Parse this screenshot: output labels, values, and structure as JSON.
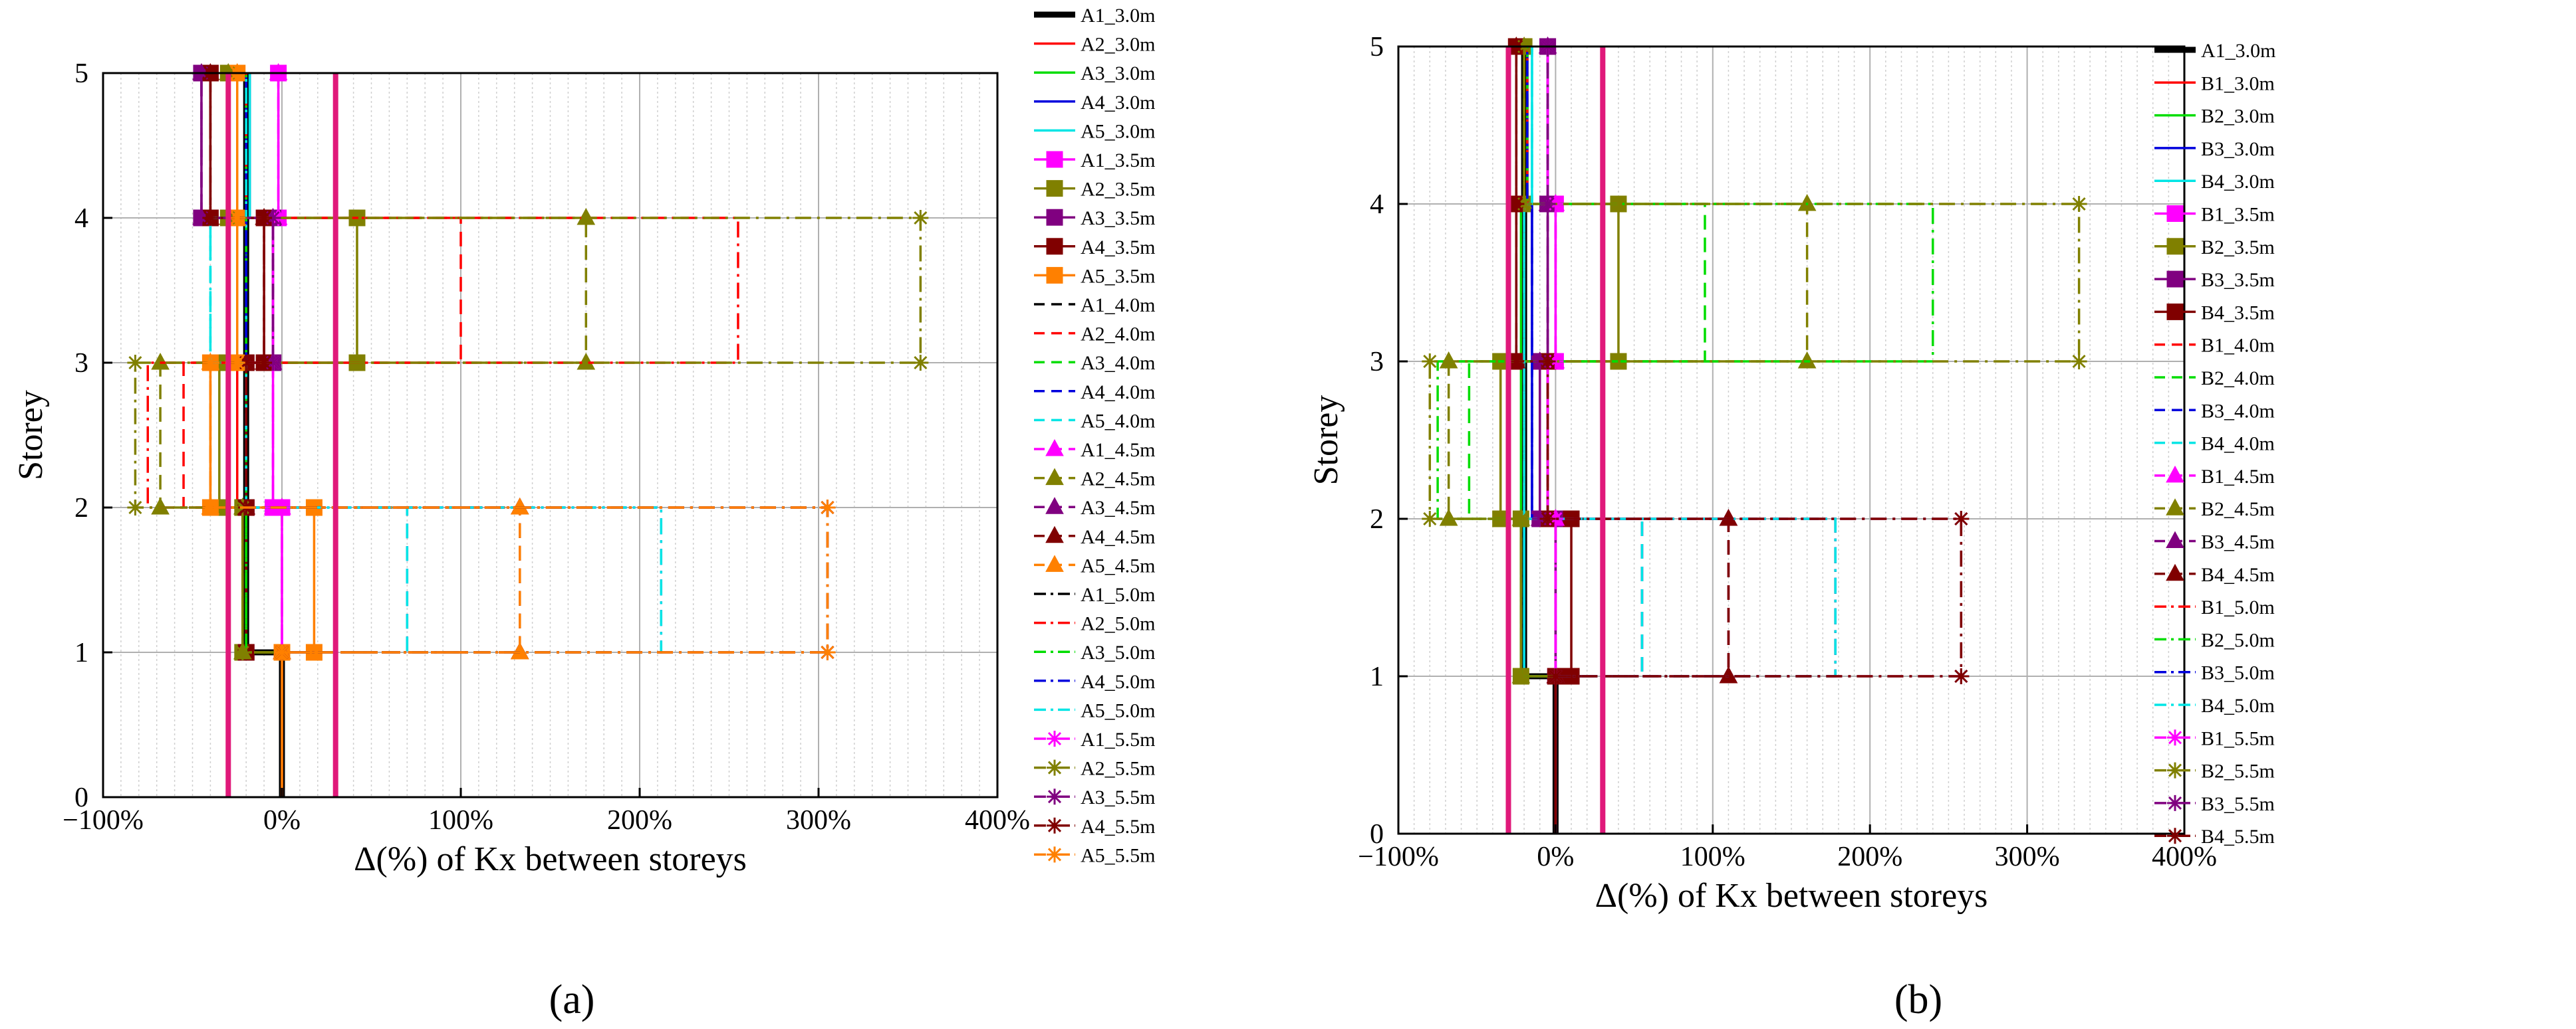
{
  "panels": [
    {
      "label": "(a)",
      "chart_data": {
        "type": "line",
        "xlabel": "Δ(%) of Kx between storeys",
        "ylabel": "Storey",
        "xlim": [
          -100,
          400
        ],
        "ylim": [
          0,
          5
        ],
        "x_ticks": [
          -100,
          0,
          100,
          200,
          300,
          400
        ],
        "x_tick_labels": [
          "−100%",
          "0%",
          "100%",
          "200%",
          "300%",
          "400%"
        ],
        "y_ticks": [
          0,
          1,
          2,
          3,
          4,
          5
        ],
        "y_tick_labels": [
          "0",
          "1",
          "2",
          "3",
          "4",
          "5"
        ],
        "grid": true,
        "legend_position": "right",
        "limit_lines_x": [
          -30,
          30
        ],
        "limit_line_color": "#e0197a",
        "series": [
          {
            "name": "A1_3.0m",
            "color": "#000000",
            "dash": "solid",
            "marker": "none",
            "bold": true,
            "x": [
              0,
              -20,
              -20,
              -20,
              -20
            ]
          },
          {
            "name": "A2_3.0m",
            "color": "#ff0000",
            "dash": "solid",
            "marker": "none",
            "x": [
              0,
              -20,
              -25,
              -20,
              -20
            ]
          },
          {
            "name": "A3_3.0m",
            "color": "#00dd00",
            "dash": "solid",
            "marker": "none",
            "x": [
              0,
              -20,
              -20,
              -20,
              -18
            ]
          },
          {
            "name": "A4_3.0m",
            "color": "#0000dd",
            "dash": "solid",
            "marker": "none",
            "x": [
              0,
              -20,
              -20,
              -20,
              -18
            ]
          },
          {
            "name": "A5_3.0m",
            "color": "#00e5e5",
            "dash": "solid",
            "marker": "none",
            "x": [
              0,
              -20,
              -20,
              -20,
              -18
            ]
          },
          {
            "name": "A1_3.5m",
            "color": "#ff00ff",
            "dash": "solid",
            "marker": "square",
            "x": [
              0,
              0,
              -5,
              -5,
              -2
            ]
          },
          {
            "name": "A2_3.5m",
            "color": "#808000",
            "dash": "solid",
            "marker": "square",
            "x": [
              0,
              -22,
              -35,
              42,
              -30
            ]
          },
          {
            "name": "A3_3.5m",
            "color": "#800080",
            "dash": "solid",
            "marker": "square",
            "x": [
              0,
              -20,
              -20,
              -5,
              -45
            ]
          },
          {
            "name": "A4_3.5m",
            "color": "#800000",
            "dash": "solid",
            "marker": "square",
            "x": [
              0,
              -20,
              -20,
              -10,
              -40
            ]
          },
          {
            "name": "A5_3.5m",
            "color": "#ff8000",
            "dash": "solid",
            "marker": "square",
            "x": [
              0,
              18,
              -40,
              -25,
              -25
            ]
          },
          {
            "name": "A1_4.0m",
            "color": "#000000",
            "dash": "dash",
            "marker": "none",
            "x": [
              0,
              -20,
              -20,
              -20,
              -20
            ]
          },
          {
            "name": "A2_4.0m",
            "color": "#ff0000",
            "dash": "dash",
            "marker": "none",
            "x": [
              0,
              -20,
              -55,
              100,
              -20
            ]
          },
          {
            "name": "A3_4.0m",
            "color": "#00dd00",
            "dash": "dash",
            "marker": "none",
            "x": [
              0,
              -20,
              -20,
              -20,
              -20
            ]
          },
          {
            "name": "A4_4.0m",
            "color": "#0000dd",
            "dash": "dash",
            "marker": "none",
            "x": [
              0,
              70,
              -20,
              -20,
              -20
            ]
          },
          {
            "name": "A5_4.0m",
            "color": "#00e5e5",
            "dash": "dash",
            "marker": "none",
            "x": [
              0,
              70,
              -20,
              -40,
              -20
            ]
          },
          {
            "name": "A1_4.5m",
            "color": "#ff00ff",
            "dash": "dash",
            "marker": "triangle",
            "x": [
              0,
              0,
              -5,
              -5,
              -2
            ]
          },
          {
            "name": "A2_4.5m",
            "color": "#808000",
            "dash": "dash",
            "marker": "triangle",
            "x": [
              0,
              -22,
              -68,
              170,
              -30
            ]
          },
          {
            "name": "A3_4.5m",
            "color": "#800080",
            "dash": "dash",
            "marker": "triangle",
            "x": [
              0,
              133,
              -20,
              -5,
              -45
            ]
          },
          {
            "name": "A4_4.5m",
            "color": "#800000",
            "dash": "dash",
            "marker": "triangle",
            "x": [
              0,
              133,
              -20,
              -10,
              -40
            ]
          },
          {
            "name": "A5_4.5m",
            "color": "#ff8000",
            "dash": "dash",
            "marker": "triangle",
            "x": [
              0,
              133,
              -40,
              -25,
              -25
            ]
          },
          {
            "name": "A1_5.0m",
            "color": "#000000",
            "dash": "dashdot",
            "marker": "none",
            "x": [
              0,
              -20,
              -20,
              -20,
              -20
            ]
          },
          {
            "name": "A2_5.0m",
            "color": "#ff0000",
            "dash": "dashdot",
            "marker": "none",
            "x": [
              0,
              -20,
              -75,
              255,
              -20
            ]
          },
          {
            "name": "A3_5.0m",
            "color": "#00dd00",
            "dash": "dashdot",
            "marker": "none",
            "x": [
              0,
              -20,
              -20,
              -20,
              -20
            ]
          },
          {
            "name": "A4_5.0m",
            "color": "#0000dd",
            "dash": "dashdot",
            "marker": "none",
            "x": [
              0,
              212,
              -20,
              -20,
              -20
            ]
          },
          {
            "name": "A5_5.0m",
            "color": "#00e5e5",
            "dash": "dashdot",
            "marker": "none",
            "x": [
              0,
              212,
              -20,
              -40,
              -20
            ]
          },
          {
            "name": "A1_5.5m",
            "color": "#ff00ff",
            "dash": "dashdot",
            "marker": "asterisk",
            "x": [
              0,
              0,
              -5,
              -5,
              -2
            ]
          },
          {
            "name": "A2_5.5m",
            "color": "#808000",
            "dash": "dashdot",
            "marker": "asterisk",
            "x": [
              0,
              -22,
              -82,
              357,
              -30
            ]
          },
          {
            "name": "A3_5.5m",
            "color": "#800080",
            "dash": "dashdot",
            "marker": "asterisk",
            "x": [
              0,
              305,
              -20,
              -5,
              -45
            ]
          },
          {
            "name": "A4_5.5m",
            "color": "#800000",
            "dash": "dashdot",
            "marker": "asterisk",
            "x": [
              0,
              305,
              -20,
              -10,
              -40
            ]
          },
          {
            "name": "A5_5.5m",
            "color": "#ff8000",
            "dash": "dashdot",
            "marker": "asterisk",
            "x": [
              0,
              305,
              -40,
              -25,
              -25
            ]
          }
        ]
      }
    },
    {
      "label": "(b)",
      "chart_data": {
        "type": "line",
        "xlabel": "Δ(%) of Kx between storeys",
        "ylabel": "Storey",
        "xlim": [
          -100,
          400
        ],
        "ylim": [
          0,
          5
        ],
        "x_ticks": [
          -100,
          0,
          100,
          200,
          300,
          400
        ],
        "x_tick_labels": [
          "−100%",
          "0%",
          "100%",
          "200%",
          "300%",
          "400%"
        ],
        "y_ticks": [
          0,
          1,
          2,
          3,
          4,
          5
        ],
        "y_tick_labels": [
          "0",
          "1",
          "2",
          "3",
          "4",
          "5"
        ],
        "grid": true,
        "legend_position": "right",
        "limit_lines_x": [
          -30,
          30
        ],
        "limit_line_color": "#e0197a",
        "series": [
          {
            "name": "A1_3.0m",
            "color": "#000000",
            "dash": "solid",
            "marker": "none",
            "bold": true,
            "x": [
              0,
              -20,
              -20,
              -20,
              -20
            ]
          },
          {
            "name": "B1_3.0m",
            "color": "#ff0000",
            "dash": "solid",
            "marker": "none",
            "x": [
              0,
              -20,
              -20,
              -20,
              -18
            ]
          },
          {
            "name": "B2_3.0m",
            "color": "#00dd00",
            "dash": "solid",
            "marker": "none",
            "x": [
              0,
              -22,
              -22,
              -22,
              -18
            ]
          },
          {
            "name": "B3_3.0m",
            "color": "#0000dd",
            "dash": "solid",
            "marker": "none",
            "x": [
              0,
              -20,
              -15,
              -15,
              -18
            ]
          },
          {
            "name": "B4_3.0m",
            "color": "#00e5e5",
            "dash": "solid",
            "marker": "none",
            "x": [
              0,
              -20,
              -20,
              -20,
              -15
            ]
          },
          {
            "name": "B1_3.5m",
            "color": "#ff00ff",
            "dash": "solid",
            "marker": "square",
            "x": [
              0,
              0,
              -5,
              0,
              -5
            ]
          },
          {
            "name": "B2_3.5m",
            "color": "#808000",
            "dash": "solid",
            "marker": "square",
            "x": [
              0,
              -22,
              -35,
              40,
              -20
            ]
          },
          {
            "name": "B3_3.5m",
            "color": "#800080",
            "dash": "solid",
            "marker": "square",
            "x": [
              0,
              0,
              -10,
              -5,
              -5
            ]
          },
          {
            "name": "B4_3.5m",
            "color": "#800000",
            "dash": "solid",
            "marker": "square",
            "x": [
              0,
              10,
              -5,
              -25,
              -25
            ]
          },
          {
            "name": "B1_4.0m",
            "color": "#ff0000",
            "dash": "dash",
            "marker": "none",
            "x": [
              0,
              55,
              -20,
              -20,
              -18
            ]
          },
          {
            "name": "B2_4.0m",
            "color": "#00dd00",
            "dash": "dash",
            "marker": "none",
            "x": [
              0,
              -22,
              -55,
              95,
              -18
            ]
          },
          {
            "name": "B3_4.0m",
            "color": "#0000dd",
            "dash": "dash",
            "marker": "none",
            "x": [
              0,
              55,
              -15,
              -15,
              -18
            ]
          },
          {
            "name": "B4_4.0m",
            "color": "#00e5e5",
            "dash": "dash",
            "marker": "none",
            "x": [
              0,
              55,
              -20,
              -20,
              -15
            ]
          },
          {
            "name": "B1_4.5m",
            "color": "#ff00ff",
            "dash": "dash",
            "marker": "triangle",
            "x": [
              0,
              0,
              -5,
              0,
              -5
            ]
          },
          {
            "name": "B2_4.5m",
            "color": "#808000",
            "dash": "dash",
            "marker": "triangle",
            "x": [
              0,
              -22,
              -68,
              160,
              -20
            ]
          },
          {
            "name": "B3_4.5m",
            "color": "#800080",
            "dash": "dash",
            "marker": "triangle",
            "x": [
              0,
              110,
              -10,
              -5,
              -5
            ]
          },
          {
            "name": "B4_4.5m",
            "color": "#800000",
            "dash": "dash",
            "marker": "triangle",
            "x": [
              0,
              110,
              -5,
              -25,
              -25
            ]
          },
          {
            "name": "B1_5.0m",
            "color": "#ff0000",
            "dash": "dashdot",
            "marker": "none",
            "x": [
              0,
              178,
              -20,
              -20,
              -18
            ]
          },
          {
            "name": "B2_5.0m",
            "color": "#00dd00",
            "dash": "dashdot",
            "marker": "none",
            "x": [
              0,
              -22,
              -75,
              240,
              -18
            ]
          },
          {
            "name": "B3_5.0m",
            "color": "#0000dd",
            "dash": "dashdot",
            "marker": "none",
            "x": [
              0,
              178,
              -15,
              -15,
              -18
            ]
          },
          {
            "name": "B4_5.0m",
            "color": "#00e5e5",
            "dash": "dashdot",
            "marker": "none",
            "x": [
              0,
              178,
              -20,
              -20,
              -15
            ]
          },
          {
            "name": "B1_5.5m",
            "color": "#ff00ff",
            "dash": "dashdot",
            "marker": "asterisk",
            "x": [
              0,
              0,
              -5,
              0,
              -5
            ]
          },
          {
            "name": "B2_5.5m",
            "color": "#808000",
            "dash": "dashdot",
            "marker": "asterisk",
            "x": [
              0,
              -22,
              -80,
              333,
              -20
            ]
          },
          {
            "name": "B3_5.5m",
            "color": "#800080",
            "dash": "dashdot",
            "marker": "asterisk",
            "x": [
              0,
              258,
              -10,
              -5,
              -5
            ]
          },
          {
            "name": "B4_5.5m",
            "color": "#800000",
            "dash": "dashdot",
            "marker": "asterisk",
            "x": [
              0,
              258,
              -5,
              -25,
              -25
            ]
          }
        ]
      }
    }
  ]
}
